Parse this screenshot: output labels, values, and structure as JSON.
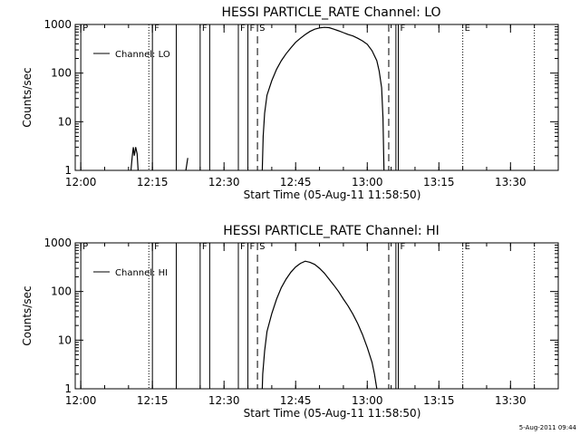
{
  "chart_data": [
    {
      "type": "line",
      "title": "HESSI PARTICLE_RATE Channel: LO",
      "xlabel": "Start Time (05-Aug-11 11:58:50)",
      "ylabel": "Counts/sec",
      "yscale": "log",
      "ylim": [
        1,
        1000
      ],
      "xlim": [
        "11:58:50",
        "13:40:00"
      ],
      "x_ticks": [
        "12:00",
        "12:15",
        "12:30",
        "12:45",
        "13:00",
        "13:15",
        "13:30"
      ],
      "y_ticks": [
        "1",
        "10",
        "100",
        "1000"
      ],
      "legend": "Channel: LO",
      "markers": [
        {
          "time": "12:00",
          "style": "solid",
          "label": "P"
        },
        {
          "time": "12:14:15",
          "style": "dotted",
          "label": ""
        },
        {
          "time": "12:15",
          "style": "solid",
          "label": "F"
        },
        {
          "time": "12:20",
          "style": "solid",
          "label": ""
        },
        {
          "time": "12:25",
          "style": "solid",
          "label": "F"
        },
        {
          "time": "12:27",
          "style": "solid",
          "label": ""
        },
        {
          "time": "12:33",
          "style": "solid",
          "label": "F"
        },
        {
          "time": "12:35",
          "style": "solid",
          "label": "F"
        },
        {
          "time": "12:37",
          "style": "dashed",
          "label": "S"
        },
        {
          "time": "13:04:30",
          "style": "dashed",
          "label": ""
        },
        {
          "time": "13:06",
          "style": "solid",
          "label": ""
        },
        {
          "time": "13:06:30",
          "style": "solid",
          "label": "F"
        },
        {
          "time": "13:20",
          "style": "dotted",
          "label": "E"
        },
        {
          "time": "13:35",
          "style": "dotted",
          "label": ""
        }
      ],
      "series": [
        {
          "name": "Channel: LO",
          "segments": [
            [
              [
                10.5,
                1
              ],
              [
                10.8,
                2
              ],
              [
                11.0,
                3
              ],
              [
                11.2,
                2
              ],
              [
                11.5,
                3
              ],
              [
                11.8,
                2.2
              ],
              [
                12.0,
                1
              ]
            ],
            [
              [
                22.0,
                1
              ],
              [
                22.4,
                1.8
              ]
            ],
            [
              [
                38.0,
                1
              ],
              [
                38.2,
                5
              ],
              [
                38.5,
                15
              ],
              [
                39.0,
                35
              ],
              [
                40.0,
                70
              ],
              [
                41.0,
                120
              ],
              [
                42.0,
                180
              ],
              [
                43.0,
                250
              ],
              [
                44.0,
                330
              ],
              [
                45.0,
                430
              ],
              [
                46.0,
                520
              ],
              [
                47.0,
                620
              ],
              [
                48.0,
                720
              ],
              [
                49.0,
                800
              ],
              [
                50.0,
                850
              ],
              [
                51.0,
                870
              ],
              [
                52.0,
                860
              ],
              [
                53.0,
                800
              ],
              [
                54.0,
                740
              ],
              [
                55.0,
                680
              ],
              [
                56.0,
                620
              ],
              [
                57.0,
                580
              ],
              [
                58.0,
                520
              ],
              [
                59.0,
                460
              ],
              [
                60.0,
                390
              ],
              [
                61.0,
                290
              ],
              [
                62.0,
                180
              ],
              [
                62.5,
                110
              ],
              [
                63.0,
                50
              ],
              [
                63.3,
                12
              ],
              [
                63.5,
                1
              ]
            ]
          ]
        }
      ]
    },
    {
      "type": "line",
      "title": "HESSI PARTICLE_RATE Channel: HI",
      "xlabel": "Start Time (05-Aug-11 11:58:50)",
      "ylabel": "Counts/sec",
      "yscale": "log",
      "ylim": [
        1,
        1000
      ],
      "xlim": [
        "11:58:50",
        "13:40:00"
      ],
      "x_ticks": [
        "12:00",
        "12:15",
        "12:30",
        "12:45",
        "13:00",
        "13:15",
        "13:30"
      ],
      "y_ticks": [
        "1",
        "10",
        "100",
        "1000"
      ],
      "legend": "Channel: HI",
      "markers": [
        {
          "time": "12:00",
          "style": "solid",
          "label": "P"
        },
        {
          "time": "12:14:15",
          "style": "dotted",
          "label": ""
        },
        {
          "time": "12:15",
          "style": "solid",
          "label": "F"
        },
        {
          "time": "12:20",
          "style": "solid",
          "label": ""
        },
        {
          "time": "12:25",
          "style": "solid",
          "label": "F"
        },
        {
          "time": "12:27",
          "style": "solid",
          "label": ""
        },
        {
          "time": "12:33",
          "style": "solid",
          "label": "F"
        },
        {
          "time": "12:35",
          "style": "solid",
          "label": "F"
        },
        {
          "time": "12:37",
          "style": "dashed",
          "label": "S"
        },
        {
          "time": "13:04:30",
          "style": "dashed",
          "label": ""
        },
        {
          "time": "13:06",
          "style": "solid",
          "label": ""
        },
        {
          "time": "13:06:30",
          "style": "solid",
          "label": "F"
        },
        {
          "time": "13:20",
          "style": "dotted",
          "label": "E"
        },
        {
          "time": "13:35",
          "style": "dotted",
          "label": ""
        }
      ],
      "series": [
        {
          "name": "Channel: HI",
          "segments": [
            [
              [
                38.0,
                1
              ],
              [
                38.1,
                2
              ],
              [
                38.5,
                6
              ],
              [
                39.0,
                15
              ],
              [
                40.0,
                35
              ],
              [
                41.0,
                70
              ],
              [
                42.0,
                120
              ],
              [
                43.0,
                180
              ],
              [
                44.0,
                250
              ],
              [
                45.0,
                320
              ],
              [
                46.0,
                380
              ],
              [
                47.0,
                420
              ],
              [
                48.0,
                400
              ],
              [
                49.0,
                360
              ],
              [
                50.0,
                300
              ],
              [
                51.0,
                240
              ],
              [
                52.0,
                180
              ],
              [
                53.0,
                135
              ],
              [
                54.0,
                100
              ],
              [
                55.0,
                70
              ],
              [
                56.0,
                50
              ],
              [
                57.0,
                34
              ],
              [
                58.0,
                22
              ],
              [
                59.0,
                13
              ],
              [
                60.0,
                7
              ],
              [
                61.0,
                3.5
              ],
              [
                61.5,
                2
              ],
              [
                62.0,
                1
              ]
            ]
          ]
        }
      ]
    }
  ],
  "timestamp": "5-Aug-2011 09:44"
}
